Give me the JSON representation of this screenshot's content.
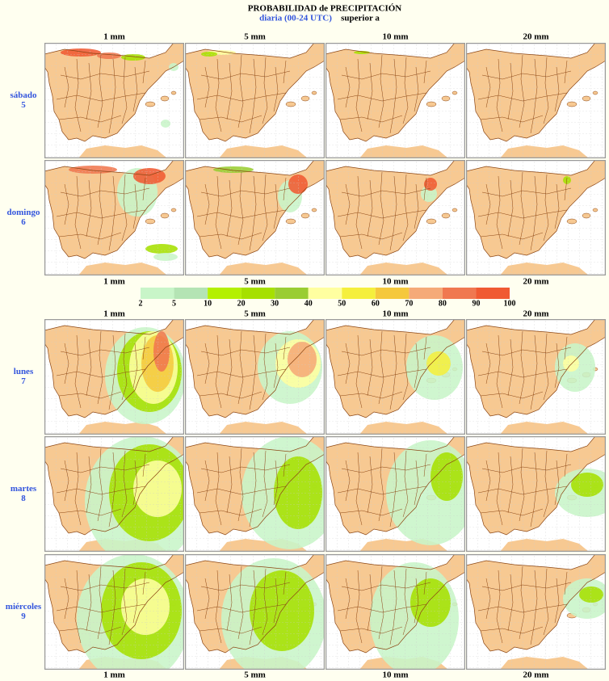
{
  "title": "PROBABILIDAD de PRECIPITACIÓN",
  "subtitle": {
    "highlight": "diaria (00-24 UTC)",
    "rest": "superior a"
  },
  "columns": [
    "1 mm",
    "5 mm",
    "10 mm",
    "20 mm"
  ],
  "rows": [
    {
      "day": "sábado",
      "date": "5"
    },
    {
      "day": "domingo",
      "date": "6"
    },
    {
      "day": "lunes",
      "date": "7"
    },
    {
      "day": "martes",
      "date": "8"
    },
    {
      "day": "miércoles",
      "date": "9"
    }
  ],
  "legend": {
    "ticks": [
      2,
      5,
      10,
      20,
      30,
      40,
      50,
      60,
      70,
      80,
      90,
      100
    ],
    "colors": [
      "#c8f5c8",
      "#b4e4b4",
      "#b4f000",
      "#a6e000",
      "#9acd32",
      "#ffffa0",
      "#f5ef3c",
      "#f5c83c",
      "#f5aa78",
      "#f07850",
      "#f05a32"
    ]
  }
}
